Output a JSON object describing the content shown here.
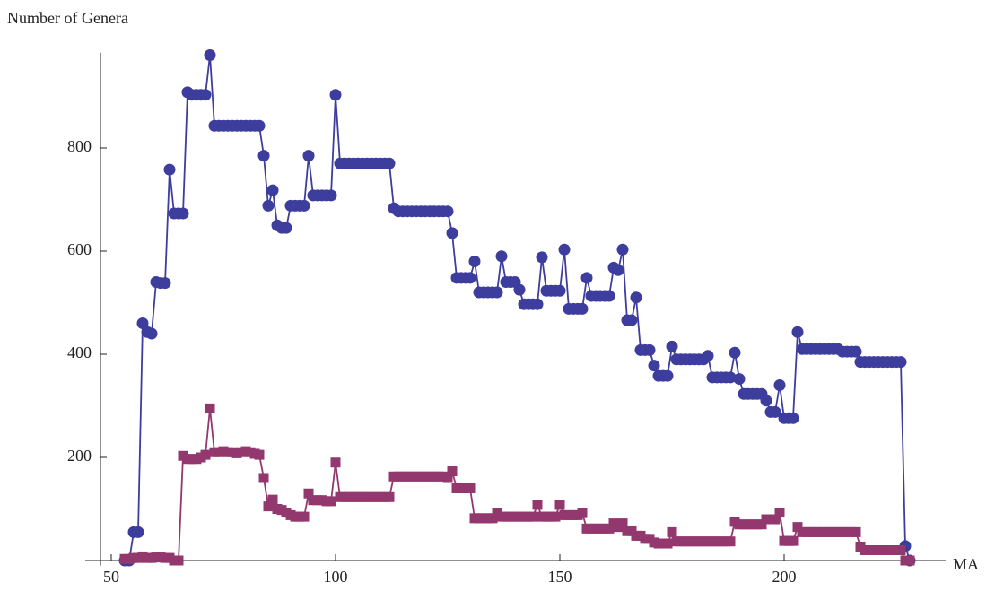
{
  "chart_data": {
    "type": "line",
    "y_label": "Number of Genera",
    "x_label": "MA",
    "x": [
      53,
      54,
      55,
      56,
      57,
      58,
      59,
      60,
      61,
      62,
      63,
      64,
      65,
      66,
      67,
      68,
      69,
      70,
      71,
      72,
      73,
      74,
      75,
      76,
      77,
      78,
      79,
      80,
      81,
      82,
      83,
      84,
      85,
      86,
      87,
      88,
      89,
      90,
      91,
      92,
      93,
      94,
      95,
      96,
      97,
      98,
      99,
      100,
      101,
      102,
      103,
      104,
      105,
      106,
      107,
      108,
      109,
      110,
      111,
      112,
      113,
      114,
      115,
      116,
      117,
      118,
      119,
      120,
      121,
      122,
      123,
      124,
      125,
      126,
      127,
      128,
      129,
      130,
      131,
      132,
      133,
      134,
      135,
      136,
      137,
      138,
      139,
      140,
      141,
      142,
      143,
      144,
      145,
      146,
      147,
      148,
      149,
      150,
      151,
      152,
      153,
      154,
      155,
      156,
      157,
      158,
      159,
      160,
      161,
      162,
      163,
      164,
      165,
      166,
      167,
      168,
      169,
      170,
      171,
      172,
      173,
      174,
      175,
      176,
      177,
      178,
      179,
      180,
      181,
      182,
      183,
      184,
      185,
      186,
      187,
      188,
      189,
      190,
      191,
      192,
      193,
      194,
      195,
      196,
      197,
      198,
      199,
      200,
      201,
      202,
      203,
      204,
      205,
      206,
      207,
      208,
      209,
      210,
      211,
      212,
      213,
      214,
      215,
      216,
      217,
      218,
      219,
      220,
      221,
      222,
      223,
      224,
      225,
      226,
      227,
      228
    ],
    "series": [
      {
        "color": "#3d3d9e",
        "marker": "circle",
        "values": [
          0,
          0,
          55,
          55,
          460,
          443,
          440,
          540,
          538,
          538,
          758,
          673,
          673,
          673,
          908,
          903,
          903,
          903,
          903,
          980,
          843,
          843,
          843,
          843,
          843,
          843,
          843,
          843,
          843,
          843,
          843,
          785,
          688,
          718,
          650,
          645,
          645,
          688,
          688,
          688,
          688,
          785,
          708,
          708,
          708,
          708,
          708,
          903,
          770,
          770,
          770,
          770,
          770,
          770,
          770,
          770,
          770,
          770,
          770,
          770,
          683,
          677,
          677,
          677,
          677,
          677,
          677,
          677,
          677,
          677,
          677,
          677,
          677,
          635,
          548,
          548,
          548,
          548,
          580,
          520,
          520,
          520,
          520,
          520,
          590,
          540,
          540,
          540,
          525,
          497,
          497,
          497,
          497,
          588,
          523,
          523,
          523,
          523,
          603,
          488,
          488,
          488,
          488,
          548,
          513,
          513,
          513,
          513,
          513,
          568,
          563,
          603,
          466,
          466,
          510,
          408,
          408,
          408,
          378,
          358,
          358,
          358,
          415,
          390,
          390,
          390,
          390,
          390,
          390,
          390,
          397,
          355,
          355,
          355,
          355,
          355,
          403,
          352,
          323,
          323,
          323,
          323,
          323,
          310,
          288,
          288,
          340,
          276,
          276,
          276,
          443,
          410,
          410,
          410,
          410,
          410,
          410,
          410,
          410,
          410,
          405,
          405,
          405,
          405,
          385,
          385,
          385,
          385,
          385,
          385,
          385,
          385,
          385,
          385,
          28,
          0
        ]
      },
      {
        "color": "#93386e",
        "marker": "square",
        "values": [
          3,
          3,
          5,
          5,
          8,
          5,
          5,
          6,
          6,
          5,
          5,
          0,
          0,
          203,
          197,
          197,
          197,
          200,
          205,
          295,
          210,
          210,
          212,
          210,
          210,
          208,
          210,
          212,
          210,
          207,
          205,
          160,
          105,
          118,
          100,
          98,
          93,
          88,
          85,
          85,
          85,
          130,
          117,
          117,
          117,
          115,
          115,
          190,
          123,
          123,
          123,
          123,
          123,
          123,
          123,
          123,
          123,
          123,
          123,
          123,
          163,
          163,
          163,
          163,
          163,
          163,
          163,
          163,
          163,
          163,
          163,
          163,
          160,
          173,
          140,
          140,
          140,
          140,
          82,
          82,
          82,
          82,
          82,
          92,
          85,
          85,
          85,
          85,
          85,
          85,
          85,
          85,
          108,
          85,
          85,
          85,
          85,
          108,
          88,
          88,
          88,
          88,
          92,
          62,
          62,
          62,
          62,
          62,
          62,
          72,
          65,
          72,
          57,
          57,
          48,
          48,
          42,
          42,
          35,
          33,
          33,
          33,
          55,
          37,
          37,
          37,
          37,
          37,
          37,
          37,
          37,
          37,
          37,
          37,
          37,
          37,
          75,
          70,
          70,
          70,
          70,
          70,
          70,
          80,
          80,
          80,
          93,
          38,
          38,
          38,
          65,
          55,
          55,
          55,
          55,
          55,
          55,
          55,
          55,
          55,
          55,
          55,
          55,
          55,
          27,
          20,
          20,
          20,
          20,
          20,
          20,
          20,
          20,
          20,
          0,
          0
        ]
      }
    ],
    "xlim": [
      47.6,
      236
    ],
    "ylim": [
      -10,
      985
    ],
    "xticks": [
      50,
      100,
      150,
      200
    ],
    "yticks": [
      200,
      400,
      600,
      800
    ]
  }
}
